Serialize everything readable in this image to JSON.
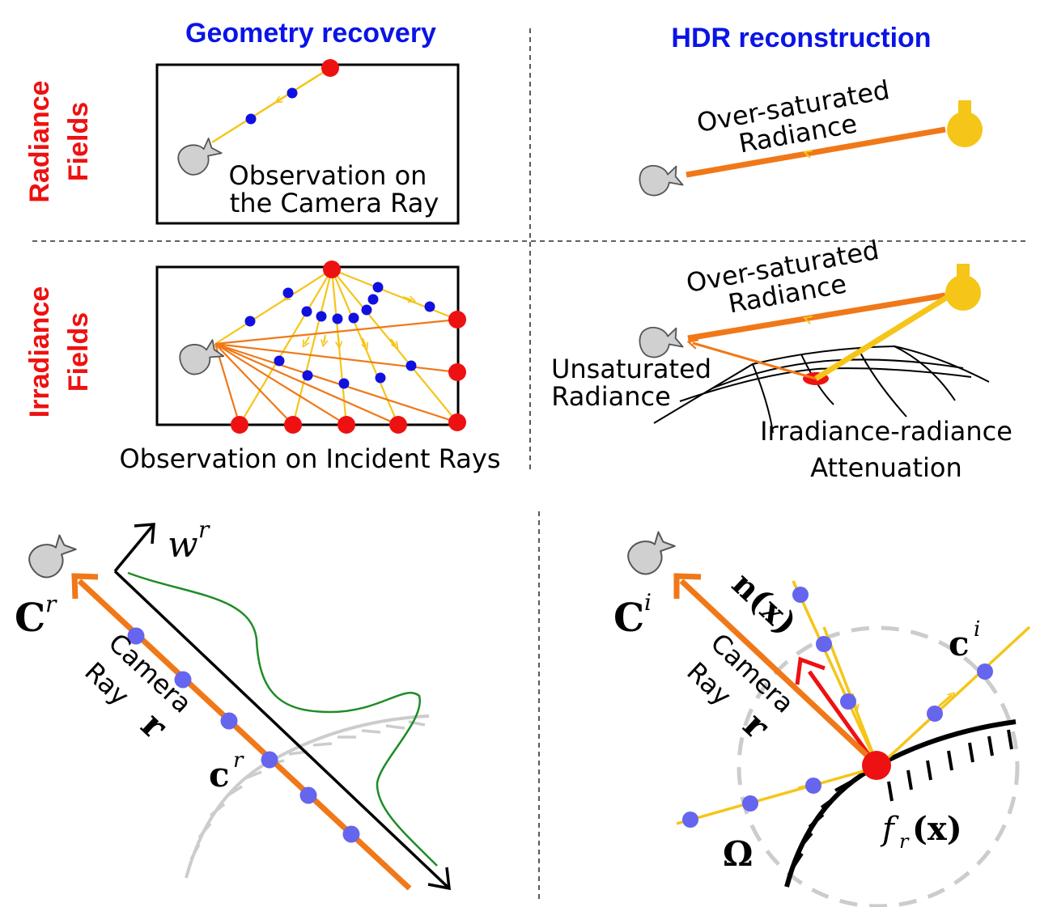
{
  "headers": {
    "col_left": "Geometry recovery",
    "col_right": "HDR reconstruction",
    "row_top_line1": "Radiance",
    "row_top_line2": "Fields",
    "row_bottom_line1": "Irradiance",
    "row_bottom_line2": "Fields"
  },
  "panels": {
    "geom_radiance": {
      "caption_line1": "Observation on",
      "caption_line2": "the Camera Ray"
    },
    "hdr_radiance": {
      "label_line1": "Over-saturated",
      "label_line2": "Radiance"
    },
    "geom_irradiance": {
      "caption": "Observation on Incident Rays"
    },
    "hdr_irradiance": {
      "over_line1": "Over-saturated",
      "over_line2": "Radiance",
      "unsat_line1": "Unsaturated",
      "unsat_line2": "Radiance",
      "atten_line1": "Irradiance-radiance",
      "atten_line2": "Attenuation"
    }
  },
  "bottom_left": {
    "C_base": "C",
    "C_sup": "r",
    "ray_word1": "Camera",
    "ray_word2": "Ray",
    "ray_symbol": "r",
    "c_base": "c",
    "c_sup": "r",
    "w_base": "w",
    "w_sup": "r"
  },
  "bottom_right": {
    "C_base": "C",
    "C_sup": "i",
    "ray_word1": "Camera",
    "ray_word2": "Ray",
    "ray_symbol": "r",
    "normal_label": "n(x)",
    "c_base": "c",
    "c_sup": "i",
    "omega": "Ω",
    "brdf_f": "f",
    "brdf_sub": "r",
    "brdf_arg": "(x)"
  },
  "colors": {
    "header_blue": "#0a14e6",
    "header_red": "#ee1111",
    "ray_orange": "#f07818",
    "ray_yellow": "#f5c518",
    "sample_blue": "#1010e0",
    "sample_lavender": "#6565ee",
    "point_red": "#ee1111",
    "density_green": "#1e8c28",
    "surface_gray": "#cccccc",
    "camera_gray": "#d0d0d0"
  }
}
